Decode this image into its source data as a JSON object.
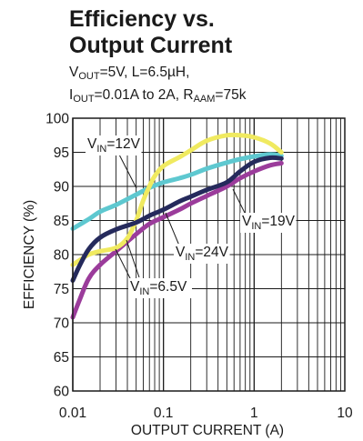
{
  "title_line1": "Efficiency vs.",
  "title_line2": "Output Current",
  "subtitle": {
    "vout_prefix": "V",
    "vout_sub": "OUT",
    "vout_rest": "=5V, L=6.5µH,",
    "iout_prefix": "I",
    "iout_sub": "OUT",
    "iout_rest": "=0.01A to 2A, R",
    "raam_sub": "AAM",
    "raam_rest": "=75k"
  },
  "chart_data": {
    "type": "line",
    "xlabel": "OUTPUT CURRENT (A)",
    "ylabel": "EFFICIENCY (%)",
    "xscale": "log",
    "xlim": [
      0.01,
      10
    ],
    "ylim": [
      60,
      100
    ],
    "grid": true,
    "xticks": [
      {
        "v": 0.01,
        "label": "0.01"
      },
      {
        "v": 0.1,
        "label": "0.1"
      },
      {
        "v": 1,
        "label": "1"
      },
      {
        "v": 10,
        "label": "10"
      }
    ],
    "yticks": [
      60,
      65,
      70,
      75,
      80,
      85,
      90,
      95,
      100
    ],
    "series": [
      {
        "name": "VIN=6.5V",
        "label_prefix": "V",
        "label_sub": "IN",
        "label_rest": "=6.5V",
        "color": "#9b3c9b",
        "x": [
          0.01,
          0.012,
          0.015,
          0.02,
          0.03,
          0.05,
          0.07,
          0.1,
          0.15,
          0.2,
          0.3,
          0.5,
          0.7,
          1,
          1.5,
          2
        ],
        "y": [
          70.8,
          73.5,
          76.5,
          78.5,
          80.5,
          83,
          84.5,
          85.5,
          86.6,
          87.5,
          88.6,
          90,
          91.2,
          92.2,
          93.1,
          93.4
        ]
      },
      {
        "name": "VIN=12V",
        "label_prefix": "V",
        "label_sub": "IN",
        "label_rest": "=12V",
        "color": "#5ec8d0",
        "x": [
          0.01,
          0.015,
          0.02,
          0.03,
          0.05,
          0.07,
          0.1,
          0.15,
          0.2,
          0.3,
          0.5,
          0.7,
          1,
          1.5,
          2
        ],
        "y": [
          83.8,
          85.2,
          86.3,
          87.3,
          88.8,
          89.8,
          90.6,
          91.2,
          91.7,
          92.6,
          93.5,
          94,
          94.4,
          94.7,
          94.5
        ]
      },
      {
        "name": "VIN=19V",
        "label_prefix": "V",
        "label_sub": "IN",
        "label_rest": "=19V",
        "color": "#f0ea60",
        "x": [
          0.01,
          0.012,
          0.015,
          0.02,
          0.03,
          0.04,
          0.05,
          0.06,
          0.07,
          0.08,
          0.1,
          0.15,
          0.2,
          0.3,
          0.5,
          0.7,
          1,
          1.5,
          2
        ],
        "y": [
          78.5,
          79.2,
          80,
          80.5,
          81,
          82.4,
          85,
          88,
          90,
          91.5,
          93,
          94.3,
          95.3,
          96.7,
          97.5,
          97.5,
          97.2,
          96.3,
          95
        ]
      },
      {
        "name": "VIN=24V",
        "label_prefix": "V",
        "label_sub": "IN",
        "label_rest": "=24V",
        "color": "#252a5c",
        "x": [
          0.01,
          0.012,
          0.015,
          0.02,
          0.03,
          0.05,
          0.07,
          0.1,
          0.15,
          0.2,
          0.3,
          0.5,
          0.7,
          1,
          1.5,
          2
        ],
        "y": [
          76.2,
          78.5,
          80.8,
          82.5,
          83.7,
          84.7,
          85.7,
          86.6,
          87.8,
          88.5,
          89.5,
          90.6,
          92.2,
          93.6,
          94.2,
          94.1
        ]
      }
    ]
  }
}
